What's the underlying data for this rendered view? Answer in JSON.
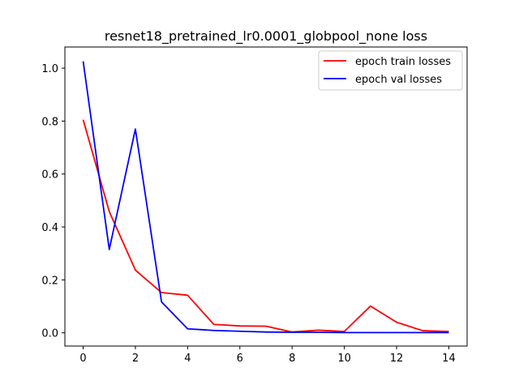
{
  "chart_data": {
    "type": "line",
    "title": "resnet18_pretrained_lr0.0001_globpool_none loss",
    "xlabel": "",
    "ylabel": "",
    "xlim": [
      -0.7,
      14.7
    ],
    "ylim": [
      -0.05,
      1.08
    ],
    "xticks": [
      0,
      2,
      4,
      6,
      8,
      10,
      12,
      14
    ],
    "yticks": [
      0.0,
      0.2,
      0.4,
      0.6,
      0.8,
      1.0
    ],
    "ytick_labels": [
      "0.0",
      "0.2",
      "0.4",
      "0.6",
      "0.8",
      "1.0"
    ],
    "grid": false,
    "legend_position": "top-right",
    "x": [
      0,
      1,
      2,
      3,
      4,
      5,
      6,
      7,
      8,
      9,
      10,
      11,
      12,
      13,
      14
    ],
    "series": [
      {
        "name": "epoch train losses",
        "color": "#ff0000",
        "values": [
          0.805,
          0.458,
          0.237,
          0.152,
          0.142,
          0.032,
          0.026,
          0.025,
          0.003,
          0.01,
          0.005,
          0.101,
          0.04,
          0.008,
          0.005
        ]
      },
      {
        "name": "epoch val losses",
        "color": "#0000ff",
        "values": [
          1.026,
          0.315,
          0.77,
          0.117,
          0.015,
          0.009,
          0.006,
          0.003,
          0.002,
          0.002,
          0.001,
          0.001,
          0.001,
          0.001,
          0.001
        ]
      }
    ]
  }
}
